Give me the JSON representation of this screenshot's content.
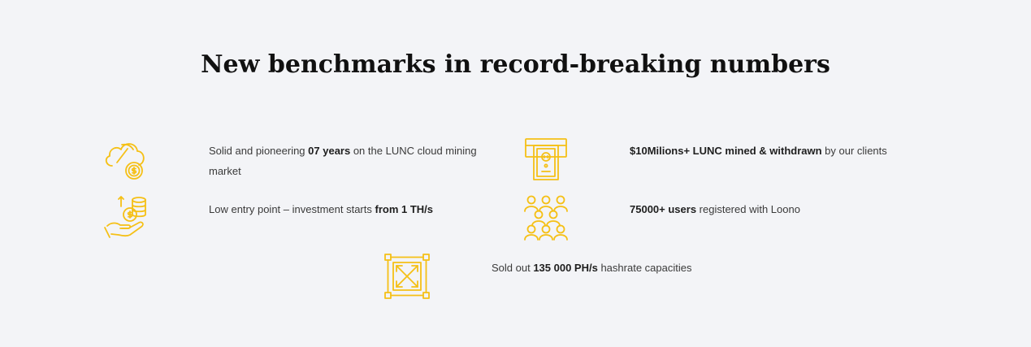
{
  "section": {
    "title": "New benchmarks in record-breaking numbers"
  },
  "accent_color": "#f5c016",
  "stats": [
    {
      "icon": "cloud-mining-icon",
      "before": "Solid and pioneering ",
      "bold": "07 years",
      "after": " on the LUNC cloud mining market"
    },
    {
      "icon": "atm-cash-icon",
      "before": "",
      "bold": "$10Milions+ LUNC mined & withdrawn",
      "after": " by our clients"
    },
    {
      "icon": "hand-coins-icon",
      "before": "Low entry point – investment starts ",
      "bold": "from 1 TH/s",
      "after": ""
    },
    {
      "icon": "users-group-icon",
      "before": "",
      "bold": "75000+ users",
      "after": " registered with Loono"
    },
    {
      "icon": "expand-box-icon",
      "before": "Sold out ",
      "bold": "135 000 PH/s",
      "after": " hashrate capacities"
    }
  ]
}
